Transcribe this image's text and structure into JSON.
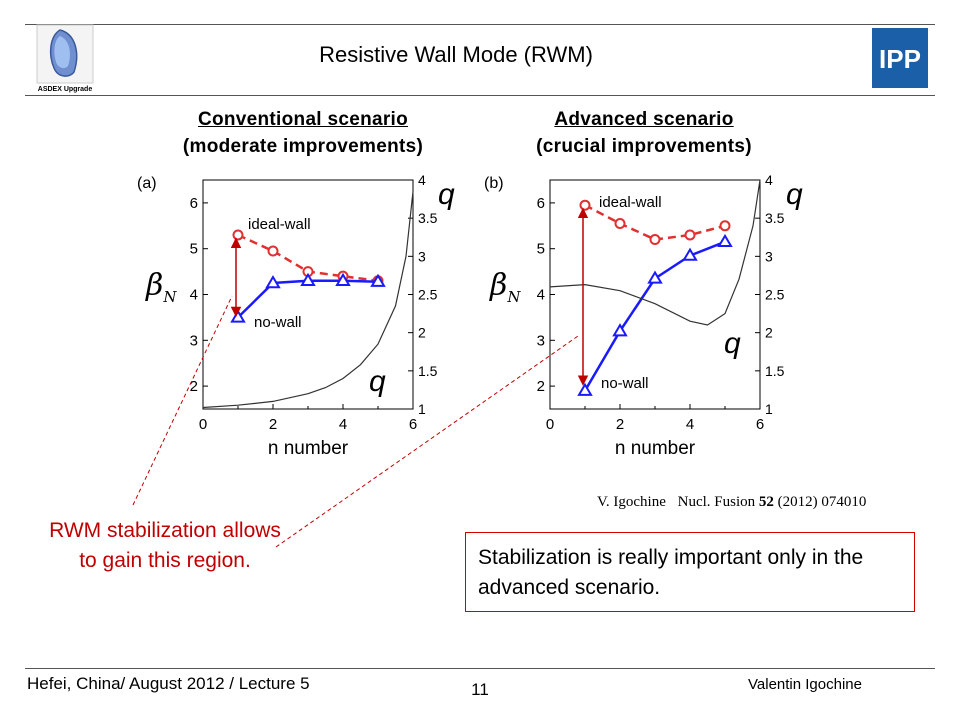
{
  "slide": {
    "title": "Resistive Wall Mode (RWM)",
    "logo_left_text": "ASDEX Upgrade",
    "logo_right_text": "IPP"
  },
  "headings": {
    "conventional": {
      "line1": "Conventional scenario",
      "line2": "(moderate improvements)"
    },
    "advanced": {
      "line1": "Advanced scenario",
      "line2": "(crucial improvements)"
    }
  },
  "chart_data": [
    {
      "type": "line",
      "panel_label": "(a)",
      "xlabel": "n number",
      "ylabel_left": "βN",
      "ylabel_right": "q",
      "xlim": [
        0,
        6
      ],
      "ylim_left": [
        1.5,
        6.5
      ],
      "ylim_right": [
        1,
        4
      ],
      "x_ticks": [
        "0",
        "2",
        "4",
        "6"
      ],
      "y_ticks_left": [
        "2",
        "3",
        "4",
        "5",
        "6"
      ],
      "y_ticks_right": [
        "1",
        "1.5",
        "2",
        "2.5",
        "3",
        "3.5",
        "4"
      ],
      "annotations": [
        "ideal-wall",
        "no-wall",
        "q",
        "q"
      ],
      "series": [
        {
          "name": "ideal-wall",
          "axis": "left",
          "color": "#e03030",
          "marker": "circle",
          "dashed": true,
          "x": [
            1,
            2,
            3,
            4,
            5
          ],
          "values": [
            5.3,
            4.95,
            4.5,
            4.4,
            4.3
          ]
        },
        {
          "name": "no-wall",
          "axis": "left",
          "color": "#1a1aff",
          "marker": "triangle",
          "dashed": false,
          "x": [
            1,
            2,
            3,
            4,
            5
          ],
          "values": [
            3.5,
            4.25,
            4.3,
            4.3,
            4.28
          ]
        },
        {
          "name": "q",
          "axis": "right",
          "color": "#333333",
          "marker": "none",
          "dashed": false,
          "x": [
            0,
            1,
            2,
            3,
            3.5,
            4,
            4.5,
            5,
            5.5,
            5.8,
            6
          ],
          "values": [
            1.02,
            1.05,
            1.1,
            1.2,
            1.28,
            1.4,
            1.58,
            1.85,
            2.35,
            3.0,
            3.85
          ]
        }
      ],
      "arrow": {
        "x": 1,
        "from": 3.55,
        "to": 5.2
      }
    },
    {
      "type": "line",
      "panel_label": "(b)",
      "xlabel": "n number",
      "ylabel_left": "βN",
      "ylabel_right": "q",
      "xlim": [
        0,
        6
      ],
      "ylim_left": [
        1.5,
        6.5
      ],
      "ylim_right": [
        1,
        4
      ],
      "x_ticks": [
        "0",
        "2",
        "4",
        "6"
      ],
      "y_ticks_left": [
        "2",
        "3",
        "4",
        "5",
        "6"
      ],
      "y_ticks_right": [
        "1",
        "1.5",
        "2",
        "2.5",
        "3",
        "3.5",
        "4"
      ],
      "annotations": [
        "ideal-wall",
        "no-wall",
        "q",
        "q"
      ],
      "series": [
        {
          "name": "ideal-wall",
          "axis": "left",
          "color": "#e03030",
          "marker": "circle",
          "dashed": true,
          "x": [
            1,
            2,
            3,
            4,
            5
          ],
          "values": [
            5.95,
            5.55,
            5.2,
            5.3,
            5.5
          ]
        },
        {
          "name": "no-wall",
          "axis": "left",
          "color": "#1a1aff",
          "marker": "triangle",
          "dashed": false,
          "x": [
            1,
            2,
            3,
            4,
            5
          ],
          "values": [
            1.9,
            3.2,
            4.35,
            4.85,
            5.15
          ]
        },
        {
          "name": "q",
          "axis": "right",
          "color": "#333333",
          "marker": "none",
          "dashed": false,
          "x": [
            0,
            1,
            2,
            3,
            4,
            4.5,
            5,
            5.4,
            5.8,
            6
          ],
          "values": [
            2.6,
            2.63,
            2.55,
            2.38,
            2.15,
            2.1,
            2.25,
            2.7,
            3.4,
            4.0
          ]
        }
      ],
      "arrow": {
        "x": 1,
        "from": 2.05,
        "to": 5.85
      }
    }
  ],
  "notes": {
    "rwm_stabilization": "RWM stabilization allows to gain this region.",
    "stabilization_box": "Stabilization is really important only in the advanced scenario."
  },
  "citation": {
    "author": "V. Igochine",
    "journal": "Nucl.  Fusion",
    "volume": "52",
    "rest": "(2012) 074010"
  },
  "footer": {
    "left": "Hefei, China/ August 2012 / Lecture 5",
    "page": "11",
    "right": "Valentin Igochine"
  },
  "colors": {
    "ideal_wall": "#e03030",
    "no_wall": "#1a1aff",
    "arrow": "#c00000",
    "note_text": "#c00000"
  }
}
